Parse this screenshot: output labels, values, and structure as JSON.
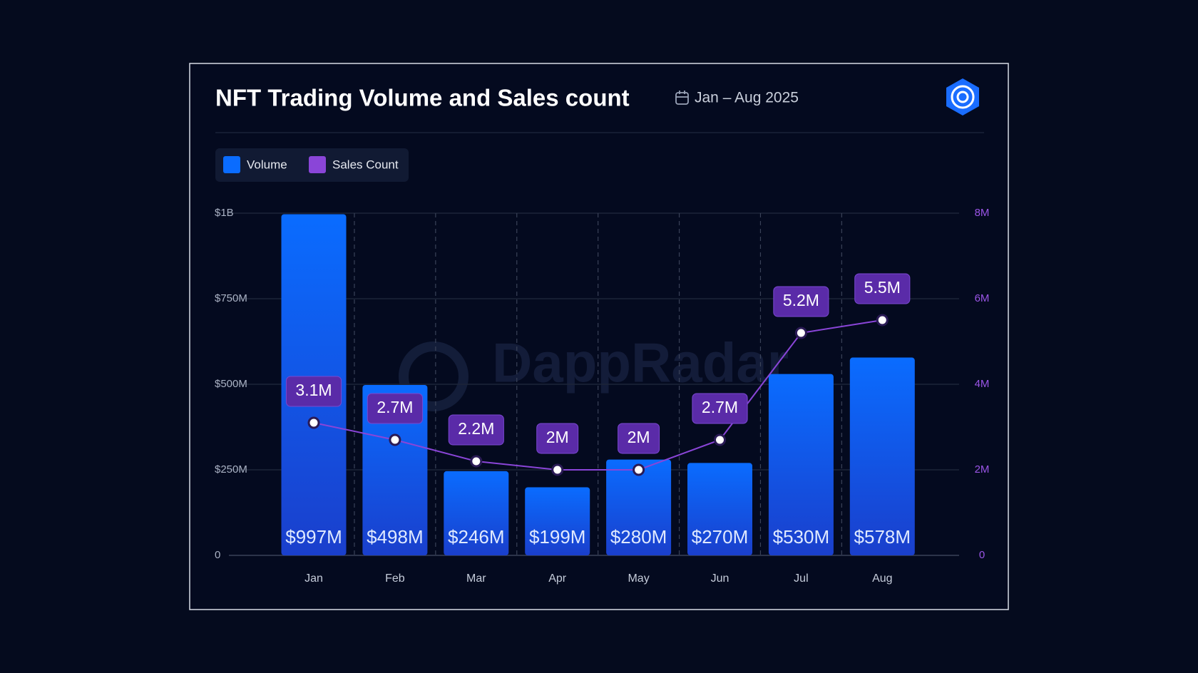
{
  "chart_data": {
    "type": "bar",
    "title": "NFT Trading Volume and Sales count",
    "subtitle": "Jan – Aug 2025",
    "watermark": "DappRadar",
    "categories": [
      "Jan",
      "Feb",
      "Mar",
      "Apr",
      "May",
      "Jun",
      "Jul",
      "Aug"
    ],
    "series": [
      {
        "name": "Volume",
        "color": "#0a6cff",
        "type": "bar",
        "values": [
          997000000,
          498000000,
          246000000,
          199000000,
          280000000,
          270000000,
          530000000,
          578000000
        ],
        "value_labels": [
          "$997M",
          "$498M",
          "$246M",
          "$199M",
          "$280M",
          "$270M",
          "$530M",
          "$578M"
        ]
      },
      {
        "name": "Sales Count",
        "color": "#8a45d8",
        "type": "line",
        "axis": "y2",
        "values": [
          3100000,
          2700000,
          2200000,
          2000000,
          2000000,
          2700000,
          5200000,
          5500000
        ],
        "value_labels": [
          "3.1M",
          "2.7M",
          "2.2M",
          "2M",
          "2M",
          "2.7M",
          "5.2M",
          "5.5M"
        ]
      }
    ],
    "ylim": [
      0,
      1000000000
    ],
    "yticks": [
      0,
      {
        "value": 250000000,
        "label": "$250M"
      },
      {
        "value": 500000000,
        "label": "$500M"
      },
      {
        "value": 750000000,
        "label": "$750M"
      },
      {
        "value": 1000000000,
        "label": "$1B"
      }
    ],
    "y2lim": [
      0,
      8000000
    ],
    "y2ticks": [
      0,
      {
        "value": 2000000,
        "label": "2M"
      },
      {
        "value": 4000000,
        "label": "4M"
      },
      {
        "value": 6000000,
        "label": "6M"
      },
      {
        "value": 8000000,
        "label": "8M"
      }
    ],
    "grid": true,
    "legend": "top-left"
  }
}
